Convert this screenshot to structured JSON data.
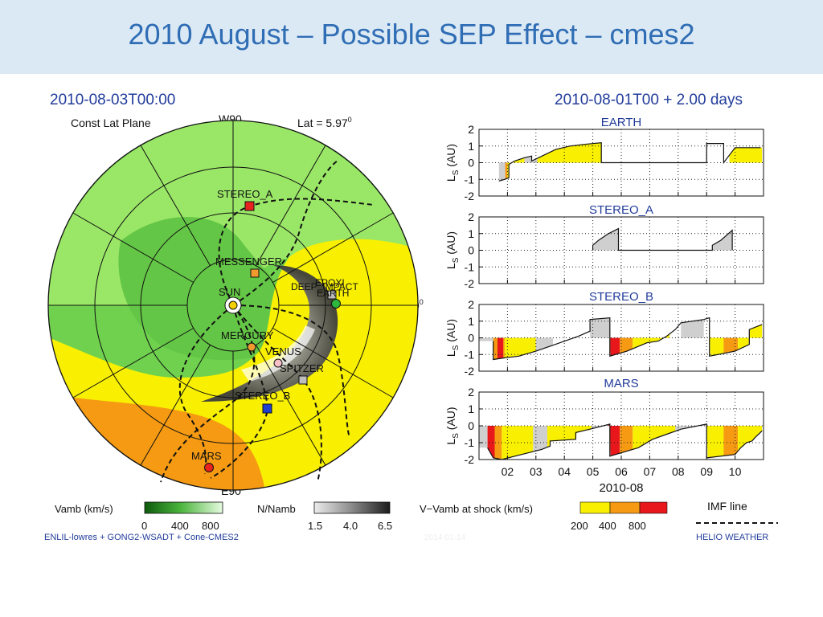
{
  "slide": {
    "title": "2010 August – Possible SEP Effect – cmes2"
  },
  "left_panel": {
    "timestamp": "2010-08-03T00:00",
    "plane_label": "Const Lat Plane",
    "lat_label": "Lat = 5.97",
    "lat_sup": "0",
    "top_label": "W90",
    "bottom_label": "E90",
    "right_label": "0",
    "right_sup": "0",
    "bodies": [
      {
        "name": "STEREO_A",
        "color": "#e8221e",
        "shape": "square"
      },
      {
        "name": "MESSENGER",
        "color": "#f29a2e",
        "shape": "square"
      },
      {
        "name": "DEEP_IMPACT",
        "color": "#bdbdbd",
        "shape": "square"
      },
      {
        "name": "EPOXI",
        "color": "#bdbdbd",
        "shape": "square"
      },
      {
        "name": "EARTH",
        "color": "#2db83d",
        "shape": "circle"
      },
      {
        "name": "SUN",
        "color": "#f5d000",
        "shape": "circle"
      },
      {
        "name": "MERCURY",
        "color": "#f29a2e",
        "shape": "circle"
      },
      {
        "name": "VENUS",
        "color": "#f7c0c8",
        "shape": "circle"
      },
      {
        "name": "SPITZER",
        "color": "#bdbdbd",
        "shape": "square"
      },
      {
        "name": "STEREO_B",
        "color": "#1f3fd1",
        "shape": "square"
      },
      {
        "name": "MARS",
        "color": "#e8221e",
        "shape": "circle"
      }
    ]
  },
  "right_panel": {
    "header": "2010-08-01T00 + 2.00 days"
  },
  "legends": {
    "vamb": {
      "label": "Vamb (km/s)",
      "ticks": [
        "0",
        "400",
        "800"
      ]
    },
    "nnamb": {
      "label": "N/Namb",
      "ticks": [
        "1.5",
        "4.0",
        "6.5"
      ]
    },
    "shock": {
      "label": "V−Vamb at shock (km/s)",
      "ticks": [
        "200",
        "400",
        "800"
      ]
    },
    "imf": {
      "label": "IMF line"
    }
  },
  "footer": {
    "left": "ENLIL-lowres + GONG2-WSADT + Cone-CMES2",
    "right": "HELIO  WEATHER",
    "faint_date": "2014-01-14"
  },
  "colors": {
    "title": "#2f6db5",
    "plot_text": "#223c9b",
    "bright_green": "#9ee86a",
    "green": "#5cc540",
    "yellow": "#f8f000",
    "orange": "#f59a12",
    "red": "#e8171b",
    "gray_fill": "#cfcfcf"
  },
  "chart_data": [
    {
      "type": "line",
      "title": "EARTH",
      "ylabel": "L_S (AU)",
      "ylim": [
        -2,
        2
      ],
      "yticks": [
        "2",
        "1",
        "0",
        "-1",
        "-2"
      ],
      "xlim": [
        1.0,
        11.0
      ],
      "x_ticks": [
        2,
        3,
        4,
        5,
        6,
        7,
        8,
        9,
        10
      ],
      "x": [
        1.7,
        1.9,
        2.05,
        2.05,
        2.25,
        2.6,
        2.85,
        2.85,
        3.7,
        4.2,
        4.7,
        5.3,
        5.3,
        7.0,
        9.0,
        9.0,
        9.6,
        9.6,
        10.0,
        10.9
      ],
      "y": [
        -1.1,
        -1.0,
        -0.9,
        -0.1,
        0.1,
        0.3,
        0.4,
        0.1,
        0.8,
        1.0,
        1.1,
        1.2,
        0.0,
        0.0,
        0.0,
        1.15,
        1.15,
        0.0,
        0.9,
        0.9
      ],
      "fill_segments": [
        {
          "from": 1.7,
          "to": 1.92,
          "color": "gray"
        },
        {
          "from": 1.92,
          "to": 2.0,
          "color": "orange"
        },
        {
          "from": 2.0,
          "to": 2.6,
          "color": "yellow"
        },
        {
          "from": 2.6,
          "to": 3.05,
          "color": "gray"
        },
        {
          "from": 3.05,
          "to": 5.3,
          "color": "yellow"
        },
        {
          "from": 8.0,
          "to": 9.0,
          "color": "yellow"
        },
        {
          "from": 9.8,
          "to": 10.95,
          "color": "yellow"
        }
      ]
    },
    {
      "type": "line",
      "title": "STEREO_A",
      "ylabel": "L_S (AU)",
      "ylim": [
        -2,
        2
      ],
      "yticks": [
        "2",
        "1",
        "0",
        "-1",
        "-2"
      ],
      "xlim": [
        1.0,
        11.0
      ],
      "x_ticks": [
        2,
        3,
        4,
        5,
        6,
        7,
        8,
        9,
        10
      ],
      "x": [
        5.0,
        5.0,
        5.2,
        5.55,
        5.9,
        5.9,
        7.6,
        7.6,
        9.2,
        9.2,
        9.5,
        9.9,
        9.9
      ],
      "y": [
        0.0,
        0.3,
        0.6,
        1.0,
        1.3,
        0.0,
        0.0,
        0.0,
        0.0,
        0.3,
        0.6,
        1.2,
        0.0
      ],
      "fill_segments": [
        {
          "from": 5.0,
          "to": 5.9,
          "color": "gray"
        },
        {
          "from": 9.2,
          "to": 9.9,
          "color": "gray"
        }
      ]
    },
    {
      "type": "line",
      "title": "STEREO_B",
      "ylabel": "L_S (AU)",
      "ylim": [
        -2,
        2
      ],
      "yticks": [
        "2",
        "1",
        "0",
        "-1",
        "-2"
      ],
      "xlim": [
        1.0,
        11.0
      ],
      "x_ticks": [
        2,
        3,
        4,
        5,
        6,
        7,
        8,
        9,
        10
      ],
      "x": [
        1.5,
        1.5,
        1.9,
        2.4,
        3.0,
        3.5,
        4.5,
        4.9,
        4.9,
        5.6,
        5.6,
        6.2,
        6.9,
        7.3,
        7.6,
        7.9,
        8.1,
        8.9,
        9.1,
        9.1,
        9.4,
        10.0,
        10.5,
        10.5,
        10.95
      ],
      "y": [
        -0.2,
        -1.3,
        -1.2,
        -1.1,
        -0.8,
        -0.5,
        0.1,
        0.4,
        1.1,
        1.2,
        -1.1,
        -0.8,
        -0.3,
        -0.2,
        0.1,
        0.5,
        0.9,
        1.1,
        1.2,
        -1.1,
        -1.0,
        -0.8,
        -0.4,
        0.5,
        0.8
      ],
      "fill_segments": [
        {
          "from": 1.0,
          "to": 1.5,
          "color": "gray"
        },
        {
          "from": 1.5,
          "to": 1.9,
          "color": "orange"
        },
        {
          "from": 1.65,
          "to": 1.85,
          "color": "red"
        },
        {
          "from": 1.9,
          "to": 3.0,
          "color": "yellow"
        },
        {
          "from": 3.0,
          "to": 3.6,
          "color": "gray"
        },
        {
          "from": 4.9,
          "to": 5.6,
          "color": "gray"
        },
        {
          "from": 5.6,
          "to": 5.95,
          "color": "red"
        },
        {
          "from": 5.95,
          "to": 6.4,
          "color": "orange"
        },
        {
          "from": 6.4,
          "to": 6.9,
          "color": "yellow"
        },
        {
          "from": 6.9,
          "to": 7.7,
          "color": "yellow"
        },
        {
          "from": 8.1,
          "to": 8.9,
          "color": "gray"
        },
        {
          "from": 9.1,
          "to": 9.6,
          "color": "yellow"
        },
        {
          "from": 9.6,
          "to": 10.1,
          "color": "orange"
        },
        {
          "from": 10.1,
          "to": 10.95,
          "color": "yellow"
        }
      ]
    },
    {
      "type": "line",
      "title": "MARS",
      "ylabel": "L_S (AU)",
      "ylim": [
        -2,
        2
      ],
      "yticks": [
        "2",
        "1",
        "0",
        "-1",
        "-2"
      ],
      "xlim": [
        1.0,
        11.0
      ],
      "x_ticks": [
        2,
        3,
        4,
        5,
        6,
        7,
        8,
        9,
        10
      ],
      "x": [
        1.3,
        1.5,
        1.8,
        2.5,
        3.2,
        3.5,
        3.5,
        4.4,
        4.4,
        4.9,
        5.6,
        5.6,
        6.6,
        7.1,
        7.6,
        8.1,
        9.0,
        9.0,
        10.0,
        10.2,
        10.4,
        10.6,
        10.7,
        10.95
      ],
      "y": [
        -1.3,
        -1.9,
        -2.0,
        -1.7,
        -1.4,
        -1.2,
        -0.9,
        -0.8,
        -0.4,
        -0.2,
        0.1,
        -1.8,
        -1.3,
        -0.8,
        -0.5,
        -0.2,
        0.1,
        -1.9,
        -1.7,
        -1.3,
        -1.0,
        -0.9,
        -0.7,
        -0.3
      ],
      "fill_segments": [
        {
          "from": 1.0,
          "to": 1.3,
          "color": "gray"
        },
        {
          "from": 1.3,
          "to": 1.55,
          "color": "red"
        },
        {
          "from": 1.55,
          "to": 1.8,
          "color": "orange"
        },
        {
          "from": 1.8,
          "to": 2.9,
          "color": "yellow"
        },
        {
          "from": 2.9,
          "to": 3.4,
          "color": "gray"
        },
        {
          "from": 3.4,
          "to": 4.4,
          "color": "yellow"
        },
        {
          "from": 4.4,
          "to": 4.95,
          "color": "yellow"
        },
        {
          "from": 4.95,
          "to": 5.55,
          "color": "gray"
        },
        {
          "from": 5.55,
          "to": 5.95,
          "color": "red"
        },
        {
          "from": 5.95,
          "to": 6.4,
          "color": "orange"
        },
        {
          "from": 6.4,
          "to": 7.9,
          "color": "yellow"
        },
        {
          "from": 7.9,
          "to": 9.0,
          "color": "gray"
        },
        {
          "from": 9.0,
          "to": 9.6,
          "color": "yellow"
        },
        {
          "from": 9.6,
          "to": 10.1,
          "color": "orange"
        },
        {
          "from": 10.1,
          "to": 10.95,
          "color": "yellow"
        }
      ]
    }
  ],
  "shared_x_axis": {
    "label": "2010-08",
    "tick_labels": [
      "02",
      "03",
      "04",
      "05",
      "06",
      "07",
      "08",
      "09",
      "10"
    ]
  }
}
